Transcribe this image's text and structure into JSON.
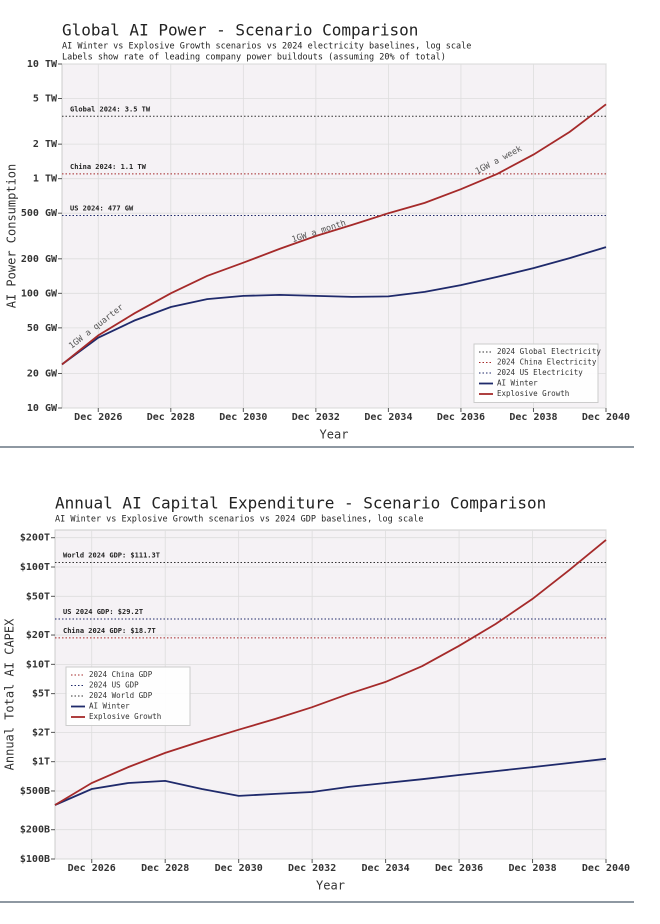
{
  "chart_data": [
    {
      "type": "line",
      "title": "Global AI Power - Scenario Comparison",
      "subtitle": [
        "AI Winter vs Explosive Growth scenarios vs 2024 electricity baselines, log scale",
        "Labels show rate of leading company power buildouts (assuming 20% of total)"
      ],
      "xlabel": "Year",
      "ylabel": "AI Power Consumption",
      "log_y": true,
      "grid": true,
      "legend": "lower right",
      "x": [
        "Dec 2025",
        "Dec 2026",
        "Dec 2027",
        "Dec 2028",
        "Dec 2029",
        "Dec 2030",
        "Dec 2031",
        "Dec 2032",
        "Dec 2033",
        "Dec 2034",
        "Dec 2035",
        "Dec 2036",
        "Dec 2037",
        "Dec 2038",
        "Dec 2039",
        "Dec 2040"
      ],
      "xlim": [
        "Dec 2025",
        "Dec 2040"
      ],
      "xticks": [
        "Dec 2026",
        "Dec 2028",
        "Dec 2030",
        "Dec 2032",
        "Dec 2034",
        "Dec 2036",
        "Dec 2038",
        "Dec 2040"
      ],
      "ylim": [
        10,
        10000
      ],
      "yticks": [
        {
          "value": 10,
          "label": "10 GW"
        },
        {
          "value": 20,
          "label": "20 GW"
        },
        {
          "value": 50,
          "label": "50 GW"
        },
        {
          "value": 100,
          "label": "100 GW"
        },
        {
          "value": 200,
          "label": "200 GW"
        },
        {
          "value": 500,
          "label": "500 GW"
        },
        {
          "value": 1000,
          "label": "1 TW"
        },
        {
          "value": 2000,
          "label": "2 TW"
        },
        {
          "value": 5000,
          "label": "5 TW"
        },
        {
          "value": 10000,
          "label": "10 TW"
        }
      ],
      "reference_lines": [
        {
          "name": "2024 Global Electricity",
          "label": "Global 2024: 3.5 TW",
          "value": 3500,
          "color": "#333333"
        },
        {
          "name": "2024 China Electricity",
          "label": "China 2024: 1.1 TW",
          "value": 1100,
          "color": "#a52a2a"
        },
        {
          "name": "2024 US Electricity",
          "label": "US 2024: 477 GW",
          "value": 477,
          "color": "#1f2a6b"
        }
      ],
      "series": [
        {
          "name": "AI Winter",
          "color": "#1f2a6b",
          "values": [
            24,
            41,
            58,
            76,
            89,
            95,
            97,
            95,
            93,
            94,
            103,
            118,
            139,
            166,
            203,
            253
          ]
        },
        {
          "name": "Explosive Growth",
          "color": "#a52a2a",
          "values": [
            24,
            43,
            67,
            100,
            142,
            185,
            244,
            316,
            395,
            500,
            615,
            810,
            1100,
            1620,
            2560,
            4450
          ]
        }
      ],
      "annotations": [
        "1GW a quarter",
        "1GW a month",
        "1GW a week"
      ]
    },
    {
      "type": "line",
      "title": "Annual AI Capital Expenditure - Scenario Comparison",
      "subtitle": [
        "AI Winter vs Explosive Growth scenarios vs 2024 GDP baselines, log scale"
      ],
      "xlabel": "Year",
      "ylabel": "Annual Total AI CAPEX",
      "log_y": true,
      "grid": true,
      "legend": "center left",
      "x": [
        "Dec 2025",
        "Dec 2026",
        "Dec 2027",
        "Dec 2028",
        "Dec 2029",
        "Dec 2030",
        "Dec 2031",
        "Dec 2032",
        "Dec 2033",
        "Dec 2034",
        "Dec 2035",
        "Dec 2036",
        "Dec 2037",
        "Dec 2038",
        "Dec 2039",
        "Dec 2040"
      ],
      "xlim": [
        "Dec 2025",
        "Dec 2040"
      ],
      "xticks": [
        "Dec 2026",
        "Dec 2028",
        "Dec 2030",
        "Dec 2032",
        "Dec 2034",
        "Dec 2036",
        "Dec 2038",
        "Dec 2040"
      ],
      "ylim": [
        100,
        240000
      ],
      "yticks": [
        {
          "value": 100,
          "label": "$100B"
        },
        {
          "value": 200,
          "label": "$200B"
        },
        {
          "value": 500,
          "label": "$500B"
        },
        {
          "value": 1000,
          "label": "$1T"
        },
        {
          "value": 2000,
          "label": "$2T"
        },
        {
          "value": 5000,
          "label": "$5T"
        },
        {
          "value": 10000,
          "label": "$10T"
        },
        {
          "value": 20000,
          "label": "$20T"
        },
        {
          "value": 50000,
          "label": "$50T"
        },
        {
          "value": 100000,
          "label": "$100T"
        },
        {
          "value": 200000,
          "label": "$200T"
        }
      ],
      "reference_lines": [
        {
          "name": "2024 China GDP",
          "label": "China 2024 GDP: $18.7T",
          "value": 18700,
          "color": "#a52a2a"
        },
        {
          "name": "2024 US GDP",
          "label": "US 2024 GDP: $29.2T",
          "value": 29200,
          "color": "#1f2a6b"
        },
        {
          "name": "2024 World GDP",
          "label": "World 2024 GDP: $111.3T",
          "value": 111300,
          "color": "#333333"
        }
      ],
      "series": [
        {
          "name": "AI Winter",
          "color": "#1f2a6b",
          "values": [
            359,
            524,
            604,
            634,
            524,
            445,
            466,
            488,
            550,
            604,
            660,
            730,
            800,
            880,
            970,
            1070
          ]
        },
        {
          "name": "Explosive Growth",
          "color": "#a52a2a",
          "values": [
            359,
            604,
            881,
            1230,
            1630,
            2130,
            2750,
            3630,
            4980,
            6600,
            9600,
            15500,
            26000,
            47000,
            93000,
            190000
          ]
        }
      ]
    }
  ]
}
